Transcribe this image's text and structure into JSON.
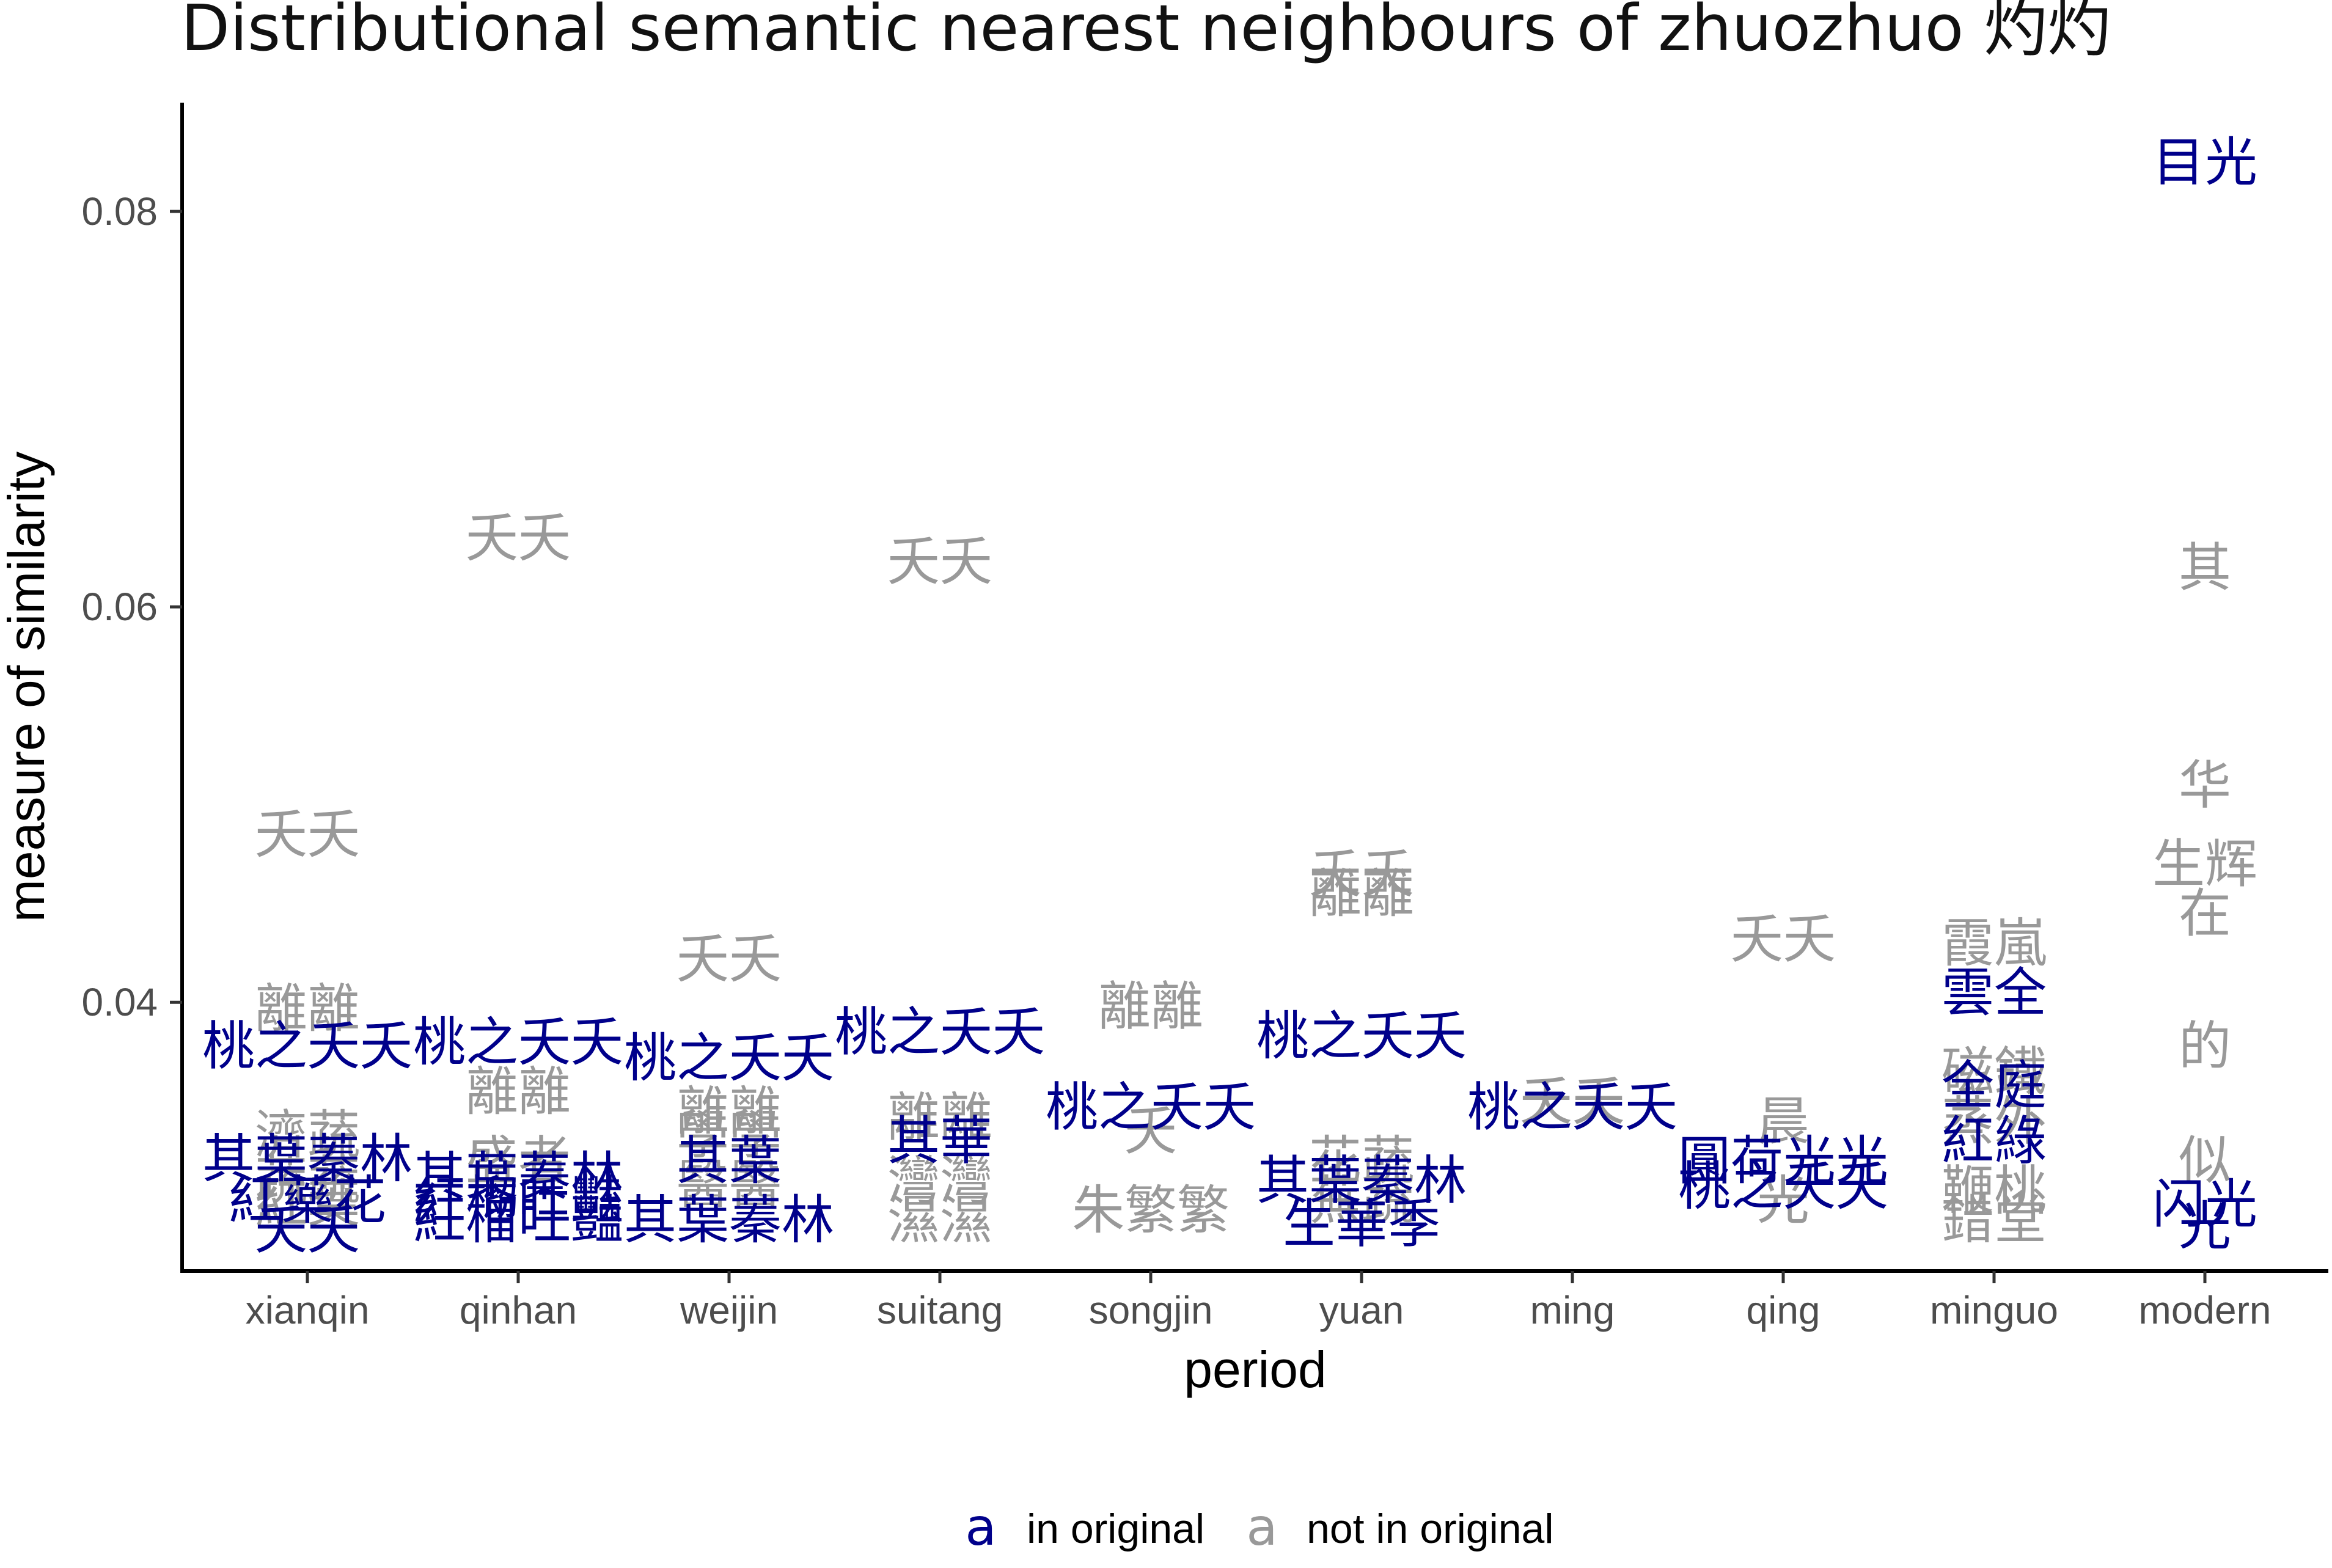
{
  "chart_data": {
    "type": "scatter",
    "title": "Distributional semantic nearest neighbours of zhuozhuo 灼灼",
    "xlabel": "period",
    "ylabel": "measure of similarity",
    "categories": [
      "xianqin",
      "qinhan",
      "weijin",
      "suitang",
      "songjin",
      "yuan",
      "ming",
      "qing",
      "minguo",
      "modern"
    ],
    "ylim": [
      0.0265,
      0.0855
    ],
    "yticks": [
      "0.04",
      "0.06",
      "0.08"
    ],
    "ytick_values": [
      0.04,
      0.06,
      0.08
    ],
    "grid": false,
    "legend_position": "bottom",
    "colors": {
      "in_original": "#00008b",
      "not_in_original": "#999999",
      "axis": "#000000"
    },
    "legend": {
      "key_glyph": "a",
      "in_label": "in original",
      "out_label": "not in original"
    },
    "series": [
      {
        "name": "in original",
        "points": [
          {
            "period": "xianqin",
            "y": 0.0378,
            "label": "桃之夭夭"
          },
          {
            "period": "xianqin",
            "y": 0.0321,
            "label": "其葉蓁林"
          },
          {
            "period": "xianqin",
            "y": 0.03,
            "label": "紅藥花"
          },
          {
            "period": "xianqin",
            "y": 0.0285,
            "label": "夭夭"
          },
          {
            "period": "qinhan",
            "y": 0.038,
            "label": "桃之夭夭"
          },
          {
            "period": "qinhan",
            "y": 0.0312,
            "label": "其葉蓁林"
          },
          {
            "period": "qinhan",
            "y": 0.03,
            "label": "紅榴吐豔"
          },
          {
            "period": "qinhan",
            "y": 0.029,
            "label": "紅榴吐豔"
          },
          {
            "period": "weijin",
            "y": 0.0372,
            "label": "桃之夭夭"
          },
          {
            "period": "weijin",
            "y": 0.032,
            "label": "其葉"
          },
          {
            "period": "weijin",
            "y": 0.029,
            "label": "其葉蓁林"
          },
          {
            "period": "suitang",
            "y": 0.0385,
            "label": "桃之夭夭"
          },
          {
            "period": "suitang",
            "y": 0.033,
            "label": "其華"
          },
          {
            "period": "songjin",
            "y": 0.0347,
            "label": "桃之夭夭"
          },
          {
            "period": "yuan",
            "y": 0.0383,
            "label": "桃之夭夭"
          },
          {
            "period": "yuan",
            "y": 0.031,
            "label": "其葉蓁林"
          },
          {
            "period": "yuan",
            "y": 0.0288,
            "label": "生華季"
          },
          {
            "period": "ming",
            "y": 0.0347,
            "label": "桃之夭夭"
          },
          {
            "period": "qing",
            "y": 0.032,
            "label": "圓荷光光"
          },
          {
            "period": "qing",
            "y": 0.0307,
            "label": "桃之夭夭"
          },
          {
            "period": "minguo",
            "y": 0.0405,
            "label": "雲全"
          },
          {
            "period": "minguo",
            "y": 0.0358,
            "label": "全庭"
          },
          {
            "period": "minguo",
            "y": 0.033,
            "label": "紅綠"
          },
          {
            "period": "modern",
            "y": 0.0825,
            "label": "目光"
          },
          {
            "period": "modern",
            "y": 0.0298,
            "label": "闪光"
          },
          {
            "period": "modern",
            "y": 0.0287,
            "label": "光"
          }
        ]
      },
      {
        "name": "not in original",
        "points": [
          {
            "period": "xianqin",
            "y": 0.0485,
            "label": "夭夭"
          },
          {
            "period": "xianqin",
            "y": 0.0397,
            "label": "離離"
          },
          {
            "period": "xianqin",
            "y": 0.0333,
            "label": "濟蔬"
          },
          {
            "period": "xianqin",
            "y": 0.031,
            "label": "蔬蔬"
          },
          {
            "period": "xianqin",
            "y": 0.0298,
            "label": "紅葉"
          },
          {
            "period": "qinhan",
            "y": 0.0635,
            "label": "夭夭"
          },
          {
            "period": "qinhan",
            "y": 0.0355,
            "label": "離離"
          },
          {
            "period": "qinhan",
            "y": 0.032,
            "label": "盛者"
          },
          {
            "period": "weijin",
            "y": 0.0422,
            "label": "夭夭"
          },
          {
            "period": "weijin",
            "y": 0.0345,
            "label": "離離"
          },
          {
            "period": "weijin",
            "y": 0.0333,
            "label": "學學"
          },
          {
            "period": "weijin",
            "y": 0.0308,
            "label": "醫醫"
          },
          {
            "period": "suitang",
            "y": 0.0623,
            "label": "夭夭"
          },
          {
            "period": "suitang",
            "y": 0.0342,
            "label": "離離"
          },
          {
            "period": "suitang",
            "y": 0.031,
            "label": "灣灣"
          },
          {
            "period": "suitang",
            "y": 0.029,
            "label": "濕濕"
          },
          {
            "period": "songjin",
            "y": 0.0398,
            "label": "離離"
          },
          {
            "period": "songjin",
            "y": 0.0335,
            "label": "夭"
          },
          {
            "period": "songjin",
            "y": 0.0295,
            "label": "朱繁繁"
          },
          {
            "period": "yuan",
            "y": 0.0465,
            "label": "夭夭"
          },
          {
            "period": "yuan",
            "y": 0.0455,
            "label": "離離"
          },
          {
            "period": "yuan",
            "y": 0.032,
            "label": "花蔬"
          },
          {
            "period": "yuan",
            "y": 0.03,
            "label": "蕪蔬"
          },
          {
            "period": "ming",
            "y": 0.035,
            "label": "夭夭"
          },
          {
            "period": "qing",
            "y": 0.0432,
            "label": "夭夭"
          },
          {
            "period": "qing",
            "y": 0.034,
            "label": "晨"
          },
          {
            "period": "qing",
            "y": 0.03,
            "label": "光"
          },
          {
            "period": "minguo",
            "y": 0.043,
            "label": "霞嵐"
          },
          {
            "period": "minguo",
            "y": 0.0365,
            "label": "磁鐵"
          },
          {
            "period": "minguo",
            "y": 0.034,
            "label": "蒸外"
          },
          {
            "period": "minguo",
            "y": 0.0305,
            "label": "鞭桃"
          },
          {
            "period": "minguo",
            "y": 0.029,
            "label": "錯堂"
          },
          {
            "period": "modern",
            "y": 0.062,
            "label": "其"
          },
          {
            "period": "modern",
            "y": 0.051,
            "label": "华"
          },
          {
            "period": "modern",
            "y": 0.047,
            "label": "生辉"
          },
          {
            "period": "modern",
            "y": 0.0445,
            "label": "在"
          },
          {
            "period": "modern",
            "y": 0.0378,
            "label": "的"
          },
          {
            "period": "modern",
            "y": 0.032,
            "label": "似"
          }
        ]
      }
    ]
  }
}
